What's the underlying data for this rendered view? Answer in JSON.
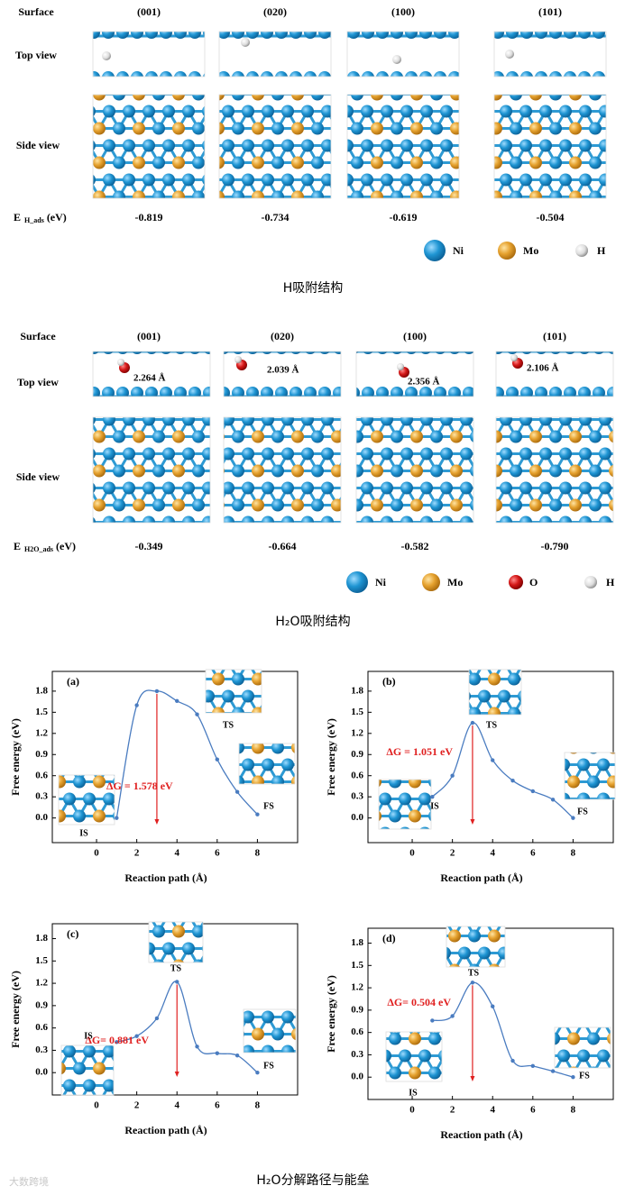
{
  "h_adsorption": {
    "header": "Surface",
    "facets": [
      "(001)",
      "(020)",
      "(100)",
      "(101)"
    ],
    "rows": [
      "Top view",
      "Side view"
    ],
    "energy_label": {
      "symbol": "E",
      "subscript": "H_ads",
      "unit": "(eV)"
    },
    "energies": [
      "-0.819",
      "-0.734",
      "-0.619",
      "-0.504"
    ],
    "legend": [
      "Ni",
      "Mo",
      "H"
    ],
    "caption": "H吸附结构"
  },
  "h2o_adsorption": {
    "header": "Surface",
    "facets": [
      "(001)",
      "(020)",
      "(100)",
      "(101)"
    ],
    "rows": [
      "Top view",
      "Side view"
    ],
    "distances": [
      "2.264 Å",
      "2.039 Å",
      "2.356 Å",
      "2.106 Å"
    ],
    "energy_label": {
      "symbol": "E",
      "subscript": "H2O_ads",
      "unit": "(eV)"
    },
    "energies": [
      "-0.349",
      "-0.664",
      "-0.582",
      "-0.790"
    ],
    "legend": [
      "Ni",
      "Mo",
      "O",
      "H"
    ],
    "caption": "H₂O吸附结构"
  },
  "chart_data": [
    {
      "type": "line",
      "title": "(a)",
      "xlabel": "Reaction path (Å)",
      "ylabel": "Free energy (eV)",
      "x": [
        1,
        2,
        3,
        4,
        5,
        6,
        7,
        8
      ],
      "series": [
        {
          "color": "#4a7cc0",
          "values": [
            0.0,
            1.6,
            1.8,
            1.66,
            1.47,
            0.83,
            0.37,
            0.05
          ]
        }
      ],
      "xlim": [
        -2.2,
        10
      ],
      "ylim": [
        -0.35,
        2.08
      ],
      "xticks": [
        0,
        2,
        4,
        6,
        8
      ],
      "yticks": [
        {
          "value": 0,
          "label": "0.0"
        },
        0.3,
        0.6,
        0.9,
        1.2,
        1.5,
        1.8
      ],
      "annotation": "ΔG = 1.578 eV",
      "labels": {
        "ts": "TS",
        "is": "IS",
        "fs": "FS"
      }
    },
    {
      "type": "line",
      "title": "(b)",
      "xlabel": "Reaction path (Å)",
      "ylabel": "Free energy (eV)",
      "x": [
        1,
        2,
        3,
        4,
        5,
        6,
        7,
        8
      ],
      "series": [
        {
          "color": "#4a7cc0",
          "values": [
            0.3,
            0.6,
            1.35,
            0.82,
            0.53,
            0.38,
            0.26,
            0.0
          ]
        }
      ],
      "xlim": [
        -2.2,
        10
      ],
      "ylim": [
        -0.35,
        2.08
      ],
      "xticks": [
        0,
        2,
        4,
        6,
        8
      ],
      "yticks": [
        {
          "value": 0,
          "label": "0.0"
        },
        0.3,
        0.6,
        0.9,
        1.2,
        1.5,
        1.8
      ],
      "annotation": "ΔG = 1.051 eV",
      "labels": {
        "ts": "TS",
        "is": "IS",
        "fs": "FS"
      }
    },
    {
      "type": "line",
      "title": "(c)",
      "xlabel": "Reaction path (Å)",
      "ylabel": "Free energy (eV)",
      "x": [
        1,
        2,
        3,
        4,
        5,
        6,
        7,
        8
      ],
      "series": [
        {
          "color": "#4a7cc0",
          "values": [
            0.41,
            0.49,
            0.73,
            1.22,
            0.35,
            0.26,
            0.23,
            0.0
          ]
        }
      ],
      "xlim": [
        -2.2,
        10
      ],
      "ylim": [
        -0.3,
        2.0
      ],
      "xticks": [
        0,
        2,
        4,
        6,
        8
      ],
      "yticks": [
        {
          "value": 0,
          "label": "0.0"
        },
        0.3,
        0.6,
        0.9,
        1.2,
        1.5,
        1.8
      ],
      "annotation": "ΔG= 0.881 eV",
      "labels": {
        "ts": "TS",
        "is": "IS",
        "fs": "FS"
      }
    },
    {
      "type": "line",
      "title": "(d)",
      "xlabel": "Reaction path (Å)",
      "ylabel": "Free energy (eV)",
      "x": [
        1,
        2,
        3,
        4,
        5,
        6,
        7,
        8
      ],
      "series": [
        {
          "color": "#4a7cc0",
          "values": [
            0.76,
            0.82,
            1.27,
            0.95,
            0.22,
            0.15,
            0.08,
            0.0
          ]
        }
      ],
      "xlim": [
        -2.2,
        10
      ],
      "ylim": [
        -0.3,
        2.0
      ],
      "xticks": [
        0,
        2,
        4,
        6,
        8
      ],
      "yticks": [
        {
          "value": 0,
          "label": "0.0"
        },
        0.3,
        0.6,
        0.9,
        1.2,
        1.5,
        1.8
      ],
      "annotation": "ΔG= 0.504 eV",
      "labels": {
        "ts": "TS",
        "is": "IS",
        "fs": "FS"
      }
    }
  ],
  "caption": "H₂O分解路径与能垒",
  "watermark": "大数跨境"
}
